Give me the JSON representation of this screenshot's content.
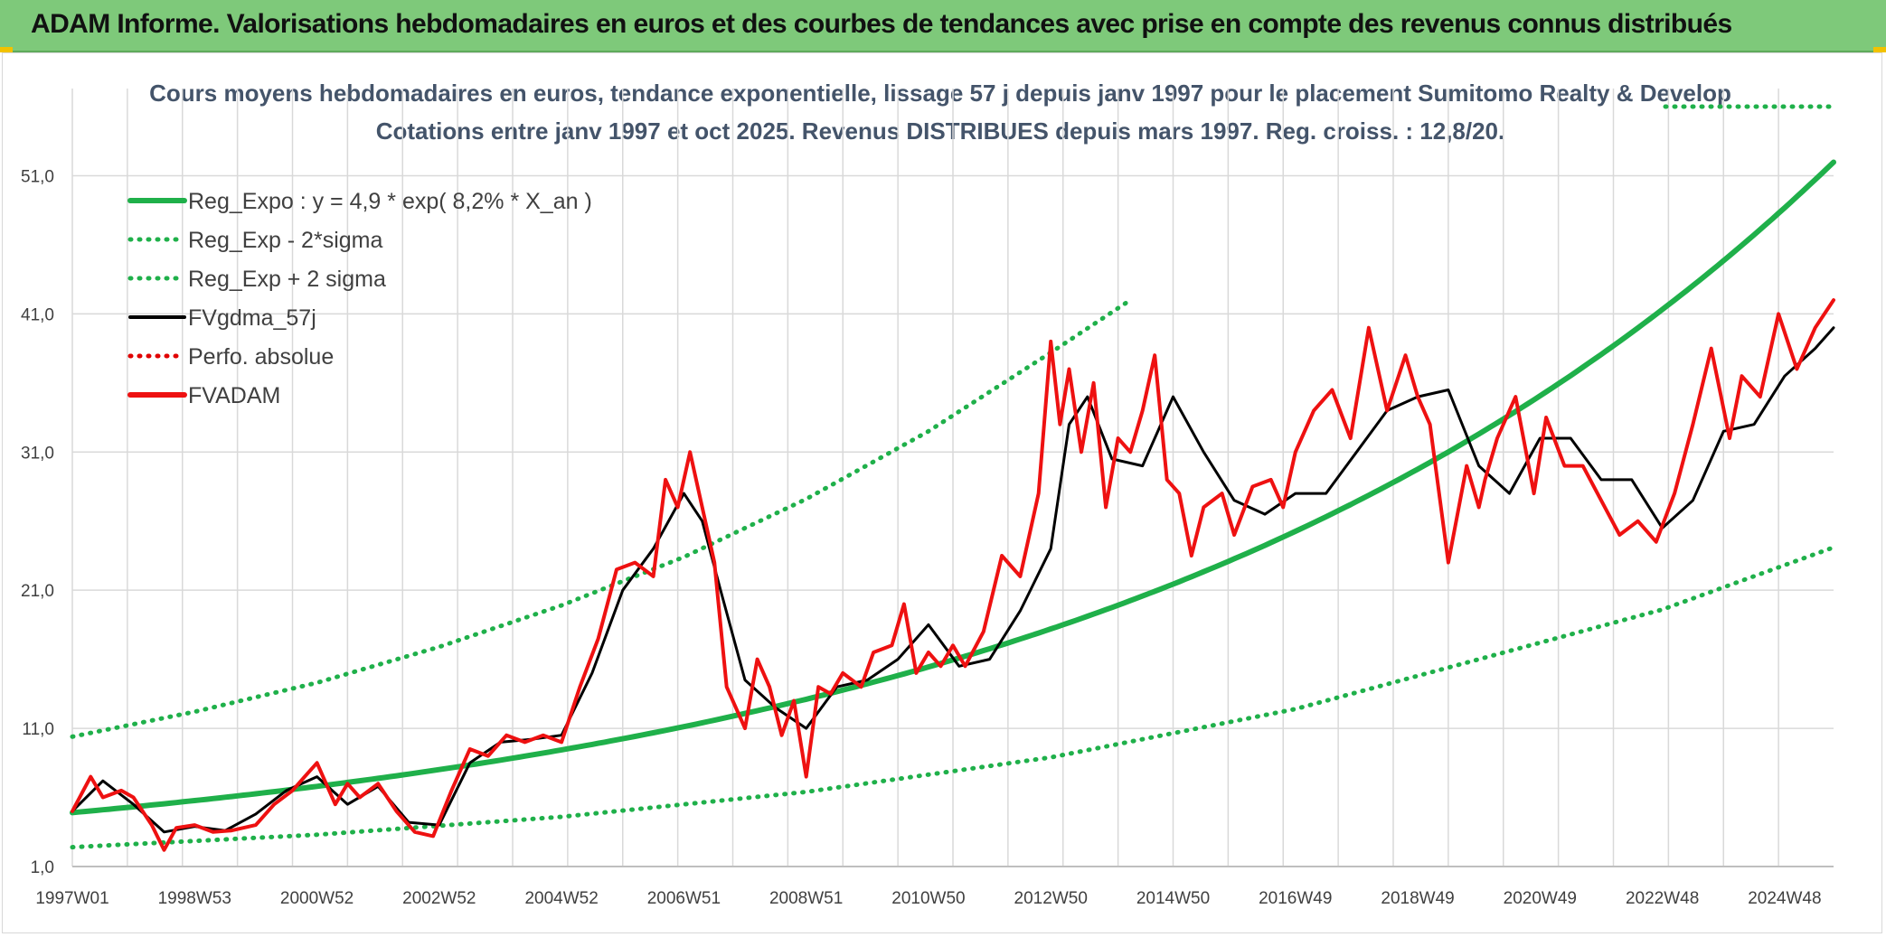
{
  "header": {
    "title": "ADAM Informe. Valorisations hebdomadaires en euros et des courbes de tendances avec prise en compte des revenus connus distribués"
  },
  "colors": {
    "banner": "#7ec97a",
    "reg_expo": "#1fb04a",
    "sigma": "#1fb04a",
    "fvgdma": "#000000",
    "perfo": "#e00000",
    "fvadam": "#ee1111",
    "grid": "#d9d9d9"
  },
  "chart_data": {
    "type": "line",
    "title_line1": "Cours moyens hebdomadaires en euros, tendance exponentielle, lissage 57 j depuis janv 1997 pour le placement Sumitomo Realty & Develop",
    "title_line2": "Cotations entre janv 1997 et oct 2025. Revenus DISTRIBUES depuis mars 1997. Reg. croiss. : 12,8/20.",
    "xlabel": "",
    "ylabel": "",
    "ylim": [
      1,
      56
    ],
    "xlim": [
      1997.0,
      2025.8
    ],
    "y_ticks": [
      "1,0",
      "11,0",
      "21,0",
      "31,0",
      "41,0",
      "51,0"
    ],
    "y_tick_values": [
      1,
      11,
      21,
      31,
      41,
      51
    ],
    "x_tick_labels": [
      "1997W01",
      "1998W53",
      "2000W52",
      "2002W52",
      "2004W52",
      "2006W51",
      "2008W51",
      "2010W50",
      "2012W50",
      "2014W50",
      "2016W49",
      "2018W49",
      "2020W49",
      "2022W48",
      "2024W48"
    ],
    "x_tick_values": [
      1997.0,
      1999.0,
      2001.0,
      2003.0,
      2005.0,
      2007.0,
      2009.0,
      2011.0,
      2013.0,
      2015.0,
      2017.0,
      2019.0,
      2021.0,
      2023.0,
      2025.0
    ],
    "legend": [
      {
        "label": "Reg_Expo : y = 4,9 * exp( 8,2% *  X_an )",
        "style": "solid-thick",
        "color": "#1fb04a"
      },
      {
        "label": "Reg_Exp - 2*sigma",
        "style": "dotted",
        "color": "#1fb04a"
      },
      {
        "label": "Reg_Exp + 2 sigma",
        "style": "dotted",
        "color": "#1fb04a"
      },
      {
        "label": "FVgdma_57j",
        "style": "solid",
        "color": "#000000"
      },
      {
        "label": "Perfo. absolue",
        "style": "dotted",
        "color": "#e00000"
      },
      {
        "label": "FVADAM",
        "style": "solid-thick",
        "color": "#ee1111"
      }
    ],
    "series": [
      {
        "name": "Reg_Expo",
        "formula": "4.9*exp(0.082*(year-1997))",
        "x": [
          1997,
          1999,
          2001,
          2003,
          2005,
          2007,
          2009,
          2011,
          2013,
          2015,
          2017,
          2019,
          2021,
          2023,
          2025,
          2025.8
        ],
        "values": [
          4.9,
          5.8,
          6.8,
          8.0,
          9.5,
          11.1,
          13.1,
          15.5,
          18.3,
          21.5,
          25.4,
          29.9,
          35.2,
          41.5,
          48.9,
          52.2
        ]
      },
      {
        "name": "Reg_Exp - 2*sigma",
        "x": [
          1997,
          2001,
          2005,
          2009,
          2013,
          2017,
          2021,
          2023,
          2025.8
        ],
        "values": [
          2.4,
          3.3,
          4.6,
          6.4,
          8.9,
          12.4,
          17.2,
          19.6,
          24.1
        ]
      },
      {
        "name": "Reg_Exp + 2 sigma",
        "x": [
          1997,
          1999,
          2001,
          2003,
          2005,
          2007,
          2009,
          2011,
          2013,
          2014.3
        ],
        "values": [
          10.4,
          12.2,
          14.3,
          16.9,
          19.9,
          23.4,
          27.6,
          32.5,
          38.2,
          42.0
        ]
      },
      {
        "name": "FVgdma_57j",
        "x": [
          1997.0,
          1997.5,
          1998.0,
          1998.5,
          1999.0,
          1999.5,
          2000.0,
          2000.5,
          2001.0,
          2001.5,
          2002.0,
          2002.5,
          2003.0,
          2003.5,
          2004.0,
          2004.5,
          2005.0,
          2005.5,
          2006.0,
          2006.5,
          2007.0,
          2007.3,
          2007.6,
          2008.0,
          2008.5,
          2009.0,
          2009.5,
          2010.0,
          2010.5,
          2011.0,
          2011.5,
          2012.0,
          2012.5,
          2013.0,
          2013.3,
          2013.6,
          2014.0,
          2014.5,
          2015.0,
          2015.5,
          2016.0,
          2016.5,
          2017.0,
          2017.5,
          2018.0,
          2018.5,
          2019.0,
          2019.5,
          2020.0,
          2020.5,
          2021.0,
          2021.5,
          2022.0,
          2022.5,
          2023.0,
          2023.5,
          2024.0,
          2024.5,
          2025.0,
          2025.5,
          2025.8
        ],
        "values": [
          5.0,
          7.2,
          5.5,
          3.5,
          3.9,
          3.6,
          4.8,
          6.5,
          7.5,
          5.5,
          6.8,
          4.2,
          4.0,
          8.5,
          10.0,
          10.2,
          10.5,
          15.0,
          21.0,
          24.0,
          28.0,
          26.0,
          21.0,
          14.5,
          12.5,
          11.0,
          14.0,
          14.5,
          16.0,
          18.5,
          15.5,
          16.0,
          19.5,
          24.0,
          33.0,
          35.0,
          30.5,
          30.0,
          35.0,
          31.0,
          27.5,
          26.5,
          28.0,
          28.0,
          31.0,
          34.0,
          35.0,
          35.5,
          30.0,
          28.0,
          32.0,
          32.0,
          29.0,
          29.0,
          25.5,
          27.5,
          32.5,
          33.0,
          36.5,
          38.5,
          40.0
        ]
      },
      {
        "name": "FVADAM",
        "x": [
          1997.0,
          1997.3,
          1997.5,
          1997.8,
          1998.0,
          1998.3,
          1998.5,
          1998.7,
          1999.0,
          1999.3,
          1999.6,
          2000.0,
          2000.3,
          2000.6,
          2000.8,
          2001.0,
          2001.3,
          2001.5,
          2001.7,
          2002.0,
          2002.3,
          2002.6,
          2002.9,
          2003.2,
          2003.5,
          2003.8,
          2004.1,
          2004.4,
          2004.7,
          2005.0,
          2005.3,
          2005.6,
          2005.9,
          2006.2,
          2006.5,
          2006.7,
          2006.9,
          2007.1,
          2007.3,
          2007.5,
          2007.7,
          2008.0,
          2008.2,
          2008.4,
          2008.6,
          2008.8,
          2009.0,
          2009.2,
          2009.4,
          2009.6,
          2009.9,
          2010.1,
          2010.4,
          2010.6,
          2010.8,
          2011.0,
          2011.2,
          2011.4,
          2011.6,
          2011.9,
          2012.2,
          2012.5,
          2012.8,
          2013.0,
          2013.15,
          2013.3,
          2013.5,
          2013.7,
          2013.9,
          2014.1,
          2014.3,
          2014.5,
          2014.7,
          2014.9,
          2015.1,
          2015.3,
          2015.5,
          2015.8,
          2016.0,
          2016.3,
          2016.6,
          2016.8,
          2017.0,
          2017.3,
          2017.6,
          2017.9,
          2018.2,
          2018.5,
          2018.8,
          2019.0,
          2019.2,
          2019.5,
          2019.8,
          2020.0,
          2020.1,
          2020.3,
          2020.6,
          2020.9,
          2021.1,
          2021.4,
          2021.7,
          2022.0,
          2022.3,
          2022.6,
          2022.9,
          2023.2,
          2023.5,
          2023.8,
          2024.1,
          2024.3,
          2024.6,
          2024.9,
          2025.2,
          2025.5,
          2025.8
        ],
        "values": [
          5.0,
          7.5,
          6.0,
          6.5,
          6.0,
          4.0,
          2.2,
          3.8,
          4.0,
          3.5,
          3.6,
          4.0,
          5.5,
          6.5,
          7.5,
          8.5,
          5.5,
          7.0,
          6.0,
          7.0,
          5.0,
          3.5,
          3.2,
          6.5,
          9.5,
          9.0,
          10.5,
          10.0,
          10.5,
          10.0,
          14.0,
          17.5,
          22.5,
          23.0,
          22.0,
          29.0,
          27.0,
          31.0,
          27.0,
          23.0,
          14.0,
          11.0,
          16.0,
          14.0,
          10.5,
          13.0,
          7.5,
          14.0,
          13.5,
          15.0,
          14.0,
          16.5,
          17.0,
          20.0,
          15.0,
          16.5,
          15.5,
          17.0,
          15.5,
          18.0,
          23.5,
          22.0,
          28.0,
          39.0,
          33.0,
          37.0,
          31.0,
          36.0,
          27.0,
          32.0,
          31.0,
          34.0,
          38.0,
          29.0,
          28.0,
          23.5,
          27.0,
          28.0,
          25.0,
          28.5,
          29.0,
          27.0,
          31.0,
          34.0,
          35.5,
          32.0,
          40.0,
          34.0,
          38.0,
          35.0,
          33.0,
          23.0,
          30.0,
          27.0,
          29.0,
          32.0,
          35.0,
          28.0,
          33.5,
          30.0,
          30.0,
          27.5,
          25.0,
          26.0,
          24.5,
          28.0,
          33.0,
          38.5,
          32.0,
          36.5,
          35.0,
          41.0,
          37.0,
          40.0,
          42.0
        ]
      }
    ]
  }
}
